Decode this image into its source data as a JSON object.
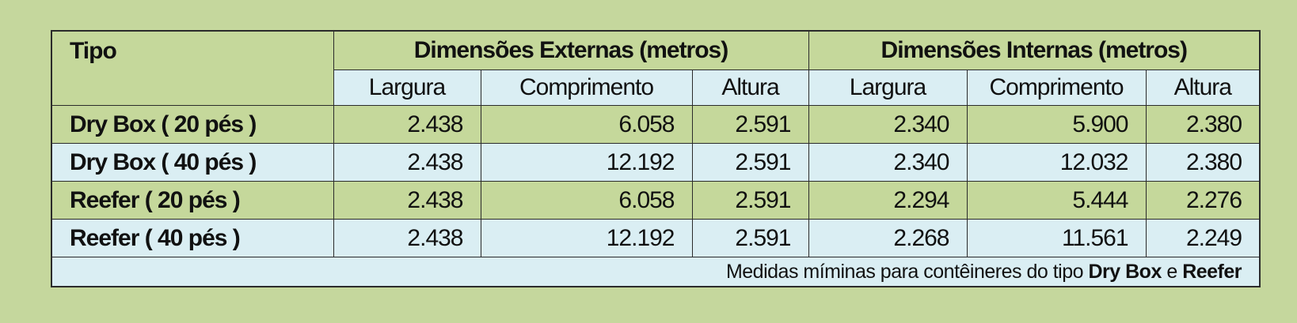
{
  "table": {
    "header": {
      "type": "Tipo",
      "groups": [
        "Dimensões Externas (metros)",
        "Dimensões Internas (metros)"
      ],
      "subheaders": [
        "Largura",
        "Comprimento",
        "Altura",
        "Largura",
        "Comprimento",
        "Altura"
      ]
    },
    "rows": [
      [
        "Dry Box ( 20 pés )",
        "2.438",
        "6.058",
        "2.591",
        "2.340",
        "5.900",
        "2.380"
      ],
      [
        "Dry Box ( 40 pés )",
        "2.438",
        "12.192",
        "2.591",
        "2.340",
        "12.032",
        "2.380"
      ],
      [
        "Reefer ( 20 pés )",
        "2.438",
        "6.058",
        "2.591",
        "2.294",
        "5.444",
        "2.276"
      ],
      [
        "Reefer ( 40 pés )",
        "2.438",
        "12.192",
        "2.591",
        "2.268",
        "11.561",
        "2.249"
      ]
    ],
    "footnote": [
      "Medidas míminas para contêineres do tipo",
      "Dry Box",
      "e",
      "Reefer"
    ]
  }
}
